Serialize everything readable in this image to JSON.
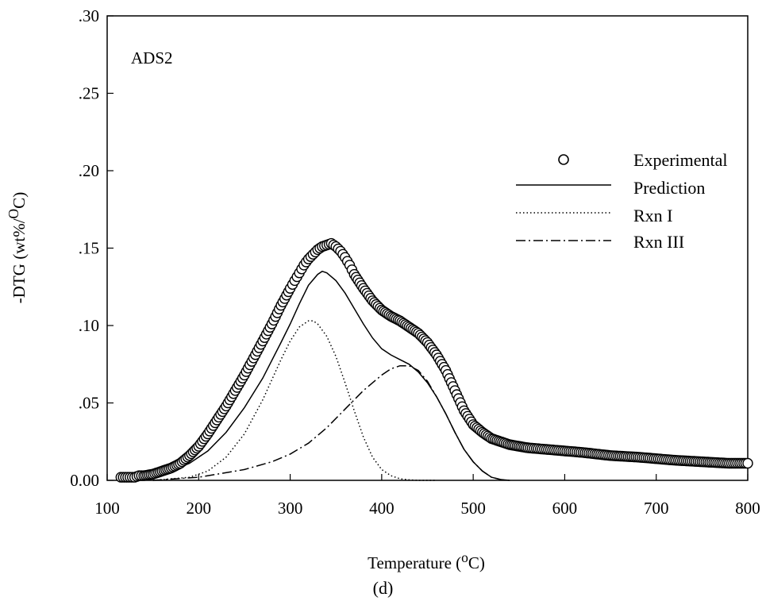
{
  "chart_data": {
    "type": "line",
    "panel_label": "ADS2",
    "caption": "(d)",
    "xlabel_main": "Temperature (",
    "xlabel_sup": "o",
    "xlabel_end": "C)",
    "ylabel_main": "-DTG (wt%/",
    "ylabel_sup": "O",
    "ylabel_end": "C)",
    "xlim": [
      100,
      800
    ],
    "ylim": [
      0,
      0.3
    ],
    "x_ticks": [
      {
        "value": 100,
        "label": "100"
      },
      {
        "value": 200,
        "label": "200"
      },
      {
        "value": 300,
        "label": "300"
      },
      {
        "value": 400,
        "label": "400"
      },
      {
        "value": 500,
        "label": "500"
      },
      {
        "value": 600,
        "label": "600"
      },
      {
        "value": 700,
        "label": "700"
      },
      {
        "value": 800,
        "label": "800"
      }
    ],
    "y_ticks": [
      {
        "value": 0.0,
        "label": "0.00"
      },
      {
        "value": 0.05,
        "label": ".05"
      },
      {
        "value": 0.1,
        "label": ".10"
      },
      {
        "value": 0.15,
        "label": ".15"
      },
      {
        "value": 0.2,
        "label": ".20"
      },
      {
        "value": 0.25,
        "label": ".25"
      },
      {
        "value": 0.3,
        "label": ".30"
      }
    ],
    "grid": false,
    "legend_position": "right",
    "series": [
      {
        "name": "Experimental",
        "style": "open-circle",
        "color": "#000000",
        "x": [
          115,
          120,
          125,
          130,
          135,
          140,
          150,
          160,
          170,
          180,
          190,
          200,
          210,
          220,
          230,
          240,
          250,
          260,
          270,
          280,
          290,
          300,
          305,
          310,
          315,
          320,
          325,
          330,
          335,
          340,
          345,
          350,
          355,
          360,
          365,
          370,
          380,
          390,
          400,
          410,
          420,
          430,
          440,
          450,
          460,
          470,
          480,
          490,
          500,
          510,
          520,
          530,
          540,
          550,
          560,
          580,
          600,
          620,
          650,
          680,
          700,
          720,
          750,
          780,
          800
        ],
        "y": [
          0.002,
          0.002,
          0.002,
          0.002,
          0.003,
          0.003,
          0.004,
          0.006,
          0.008,
          0.011,
          0.016,
          0.022,
          0.03,
          0.039,
          0.048,
          0.058,
          0.068,
          0.079,
          0.09,
          0.101,
          0.113,
          0.124,
          0.129,
          0.134,
          0.139,
          0.143,
          0.146,
          0.149,
          0.151,
          0.152,
          0.153,
          0.151,
          0.148,
          0.144,
          0.139,
          0.133,
          0.124,
          0.116,
          0.11,
          0.106,
          0.103,
          0.099,
          0.095,
          0.089,
          0.081,
          0.071,
          0.058,
          0.045,
          0.036,
          0.031,
          0.027,
          0.025,
          0.023,
          0.022,
          0.021,
          0.02,
          0.019,
          0.018,
          0.016,
          0.015,
          0.014,
          0.013,
          0.012,
          0.011,
          0.011
        ]
      },
      {
        "name": "Prediction",
        "style": "solid",
        "color": "#000000",
        "x": [
          150,
          170,
          190,
          210,
          230,
          250,
          270,
          290,
          300,
          310,
          320,
          330,
          335,
          340,
          350,
          360,
          370,
          380,
          390,
          400,
          410,
          420,
          430,
          440,
          450,
          460,
          470,
          480,
          490,
          500,
          510,
          520,
          530,
          540
        ],
        "y": [
          0.004,
          0.006,
          0.011,
          0.019,
          0.031,
          0.047,
          0.066,
          0.089,
          0.101,
          0.114,
          0.126,
          0.133,
          0.135,
          0.134,
          0.129,
          0.121,
          0.111,
          0.101,
          0.092,
          0.085,
          0.081,
          0.078,
          0.075,
          0.07,
          0.063,
          0.054,
          0.043,
          0.031,
          0.02,
          0.012,
          0.006,
          0.002,
          0.0005,
          0.0
        ]
      },
      {
        "name": "Rxn I",
        "style": "dotted",
        "color": "#000000",
        "x": [
          150,
          170,
          190,
          210,
          230,
          250,
          270,
          290,
          300,
          310,
          320,
          325,
          330,
          340,
          350,
          360,
          370,
          380,
          390,
          400,
          410,
          420,
          430,
          440,
          460
        ],
        "y": [
          0.0,
          0.001,
          0.002,
          0.006,
          0.015,
          0.03,
          0.052,
          0.078,
          0.09,
          0.099,
          0.103,
          0.103,
          0.101,
          0.093,
          0.08,
          0.063,
          0.045,
          0.028,
          0.015,
          0.007,
          0.003,
          0.001,
          0.0003,
          0.0,
          0.0
        ]
      },
      {
        "name": "Rxn III",
        "style": "dash-dot",
        "color": "#000000",
        "x": [
          150,
          200,
          250,
          280,
          300,
          320,
          340,
          360,
          380,
          400,
          410,
          420,
          430,
          440,
          450,
          460,
          470,
          480,
          490,
          500,
          510,
          520,
          530,
          540
        ],
        "y": [
          0.0,
          0.002,
          0.007,
          0.012,
          0.017,
          0.024,
          0.034,
          0.046,
          0.058,
          0.068,
          0.072,
          0.074,
          0.074,
          0.071,
          0.064,
          0.054,
          0.043,
          0.031,
          0.02,
          0.012,
          0.006,
          0.002,
          0.0005,
          0.0
        ]
      }
    ]
  }
}
